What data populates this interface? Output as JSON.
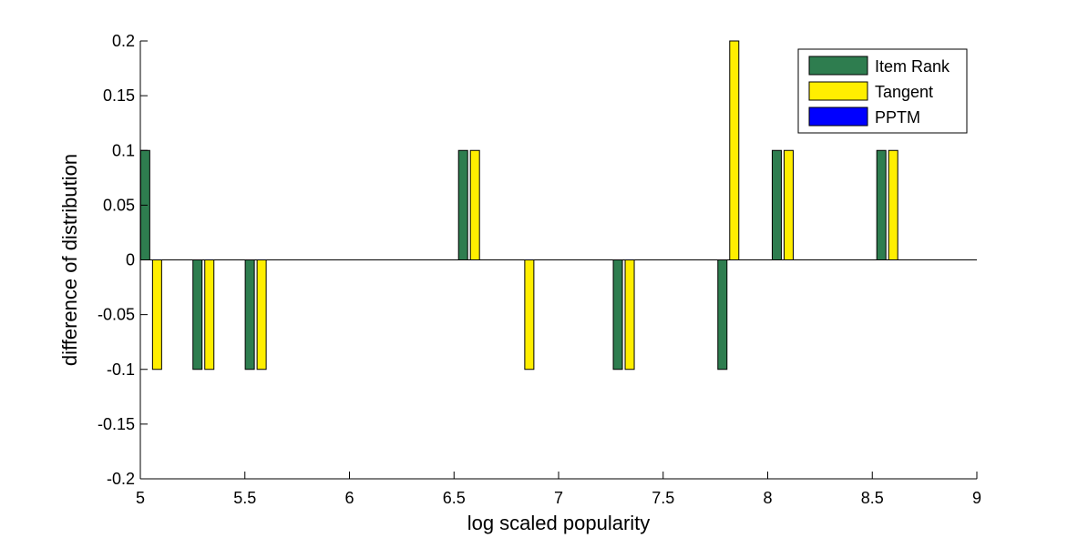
{
  "chart_data": {
    "type": "bar",
    "title": "",
    "xlabel": "log scaled popularity",
    "ylabel": "difference of distribution",
    "xlim": [
      5,
      9
    ],
    "ylim": [
      -0.2,
      0.2
    ],
    "xticks": [
      5,
      5.5,
      6,
      6.5,
      7,
      7.5,
      8,
      8.5,
      9
    ],
    "xtick_labels": [
      "5",
      "5.5",
      "6",
      "6.5",
      "7",
      "7.5",
      "8",
      "8.5",
      "9"
    ],
    "yticks": [
      -0.2,
      -0.15,
      -0.1,
      -0.05,
      0,
      0.05,
      0.1,
      0.15,
      0.2
    ],
    "ytick_labels": [
      "-0.2",
      "-0.15",
      "-0.1",
      "-0.05",
      "0",
      "0.05",
      "0.1",
      "0.15",
      "0.2"
    ],
    "categories": [
      5.08,
      5.33,
      5.58,
      6.6,
      6.86,
      7.34,
      7.84,
      8.1,
      8.6
    ],
    "grid": false,
    "legend_position": "top-right",
    "series": [
      {
        "name": "Item Rank",
        "color": "#2e7d4f",
        "values": [
          0.1,
          -0.1,
          -0.1,
          0.1,
          0,
          -0.1,
          -0.1,
          0.1,
          0.1
        ]
      },
      {
        "name": "Tangent",
        "color": "#ffee00",
        "values": [
          -0.1,
          -0.1,
          -0.1,
          0.1,
          -0.1,
          -0.1,
          0.2,
          0.1,
          0.1
        ]
      },
      {
        "name": "PPTM",
        "color": "#0000ff",
        "values": [
          0,
          0,
          0,
          0,
          0,
          0,
          0,
          0,
          0
        ]
      }
    ]
  }
}
